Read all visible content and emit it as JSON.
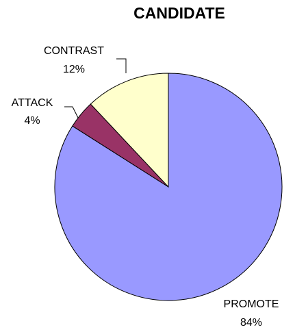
{
  "chart_data": {
    "type": "pie",
    "title": "CANDIDATE",
    "categories": [
      "PROMOTE",
      "ATTACK",
      "CONTRAST"
    ],
    "values": [
      84,
      4,
      12
    ],
    "value_labels": [
      "84%",
      "4%",
      "12%"
    ],
    "colors": [
      "#9999ff",
      "#993366",
      "#ffffcc"
    ],
    "legend": "none"
  }
}
